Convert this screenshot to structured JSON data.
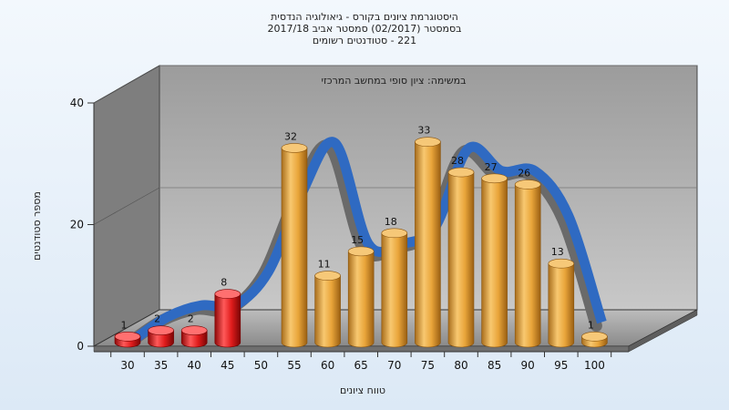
{
  "chart_data": {
    "type": "bar",
    "title_lines": [
      "היסטוגרמת ציונים בקורס - גיאולוגיה הנדסית",
      "בסמסטר  (02/2017)  סמסטר אביב 2017/18",
      "221 - סטודנטים רשומים"
    ],
    "subtitle": "במשימה: ציון סופי במחשב המרכזי",
    "xlabel": "טווח ציונים",
    "ylabel": "מספר סטודנטים",
    "ylim": [
      0,
      40
    ],
    "yticks": [
      "0",
      "20",
      "40"
    ],
    "categories": [
      "30",
      "35",
      "40",
      "45",
      "50",
      "55",
      "60",
      "65",
      "70",
      "75",
      "80",
      "85",
      "90",
      "95",
      "100"
    ],
    "values": [
      1,
      2,
      2,
      8,
      null,
      32,
      11,
      15,
      18,
      33,
      28,
      27,
      26,
      13,
      1
    ],
    "value_labels": [
      "1",
      "2",
      "2",
      "8",
      "",
      "32",
      "11",
      "15",
      "18",
      "33",
      "28",
      "27",
      "26",
      "13",
      "1"
    ],
    "failing_color": "#e01c1c",
    "passing_color": "#e9a53a",
    "curve_color": "#2f6ac2",
    "curve_values": [
      0,
      4,
      6,
      6,
      12,
      26,
      35,
      17,
      17,
      20,
      34,
      30,
      30,
      22,
      3
    ]
  }
}
